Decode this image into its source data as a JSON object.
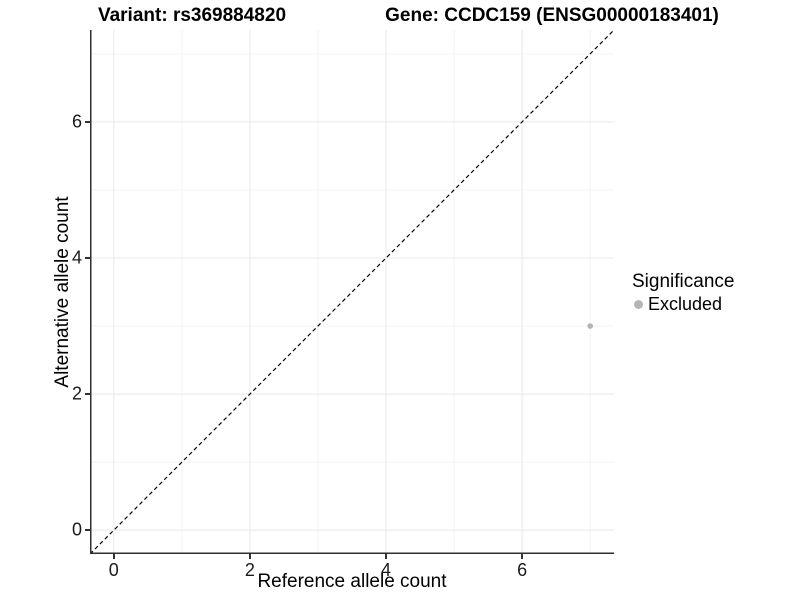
{
  "figure": {
    "title_left": "Variant: rs369884820",
    "title_right": "Gene: CCDC159 (ENSG00000183401)"
  },
  "chart_data": {
    "type": "scatter",
    "title": "Variant: rs369884820 / Gene: CCDC159 (ENSG00000183401)",
    "xlabel": "Reference allele count",
    "ylabel": "Alternative allele count",
    "xlim": [
      -0.35,
      7.35
    ],
    "ylim": [
      -0.35,
      7.35
    ],
    "x_ticks": [
      0,
      2,
      4,
      6
    ],
    "y_ticks": [
      0,
      2,
      4,
      6
    ],
    "x_minor_ticks": [
      1,
      3,
      5,
      7
    ],
    "y_minor_ticks": [
      1,
      3,
      5,
      7
    ],
    "grid": true,
    "identity_line": {
      "style": "dashed",
      "color": "#000000",
      "from": [
        -0.35,
        -0.35
      ],
      "to": [
        7.35,
        7.35
      ]
    },
    "series": [
      {
        "name": "Excluded",
        "color": "#b5b5b5",
        "points": [
          {
            "x": 7,
            "y": 3
          }
        ]
      }
    ],
    "legend": {
      "title": "Significance",
      "position": "right",
      "items": [
        {
          "label": "Excluded",
          "color": "#b5b5b5"
        }
      ]
    }
  },
  "colors": {
    "background": "#ffffff",
    "grid_major": "#e8e8e8",
    "grid_minor": "#f3f3f3",
    "axis_line": "#2f2f2f",
    "tick_text": "#1a1a1a",
    "point": "#b5b5b5"
  }
}
